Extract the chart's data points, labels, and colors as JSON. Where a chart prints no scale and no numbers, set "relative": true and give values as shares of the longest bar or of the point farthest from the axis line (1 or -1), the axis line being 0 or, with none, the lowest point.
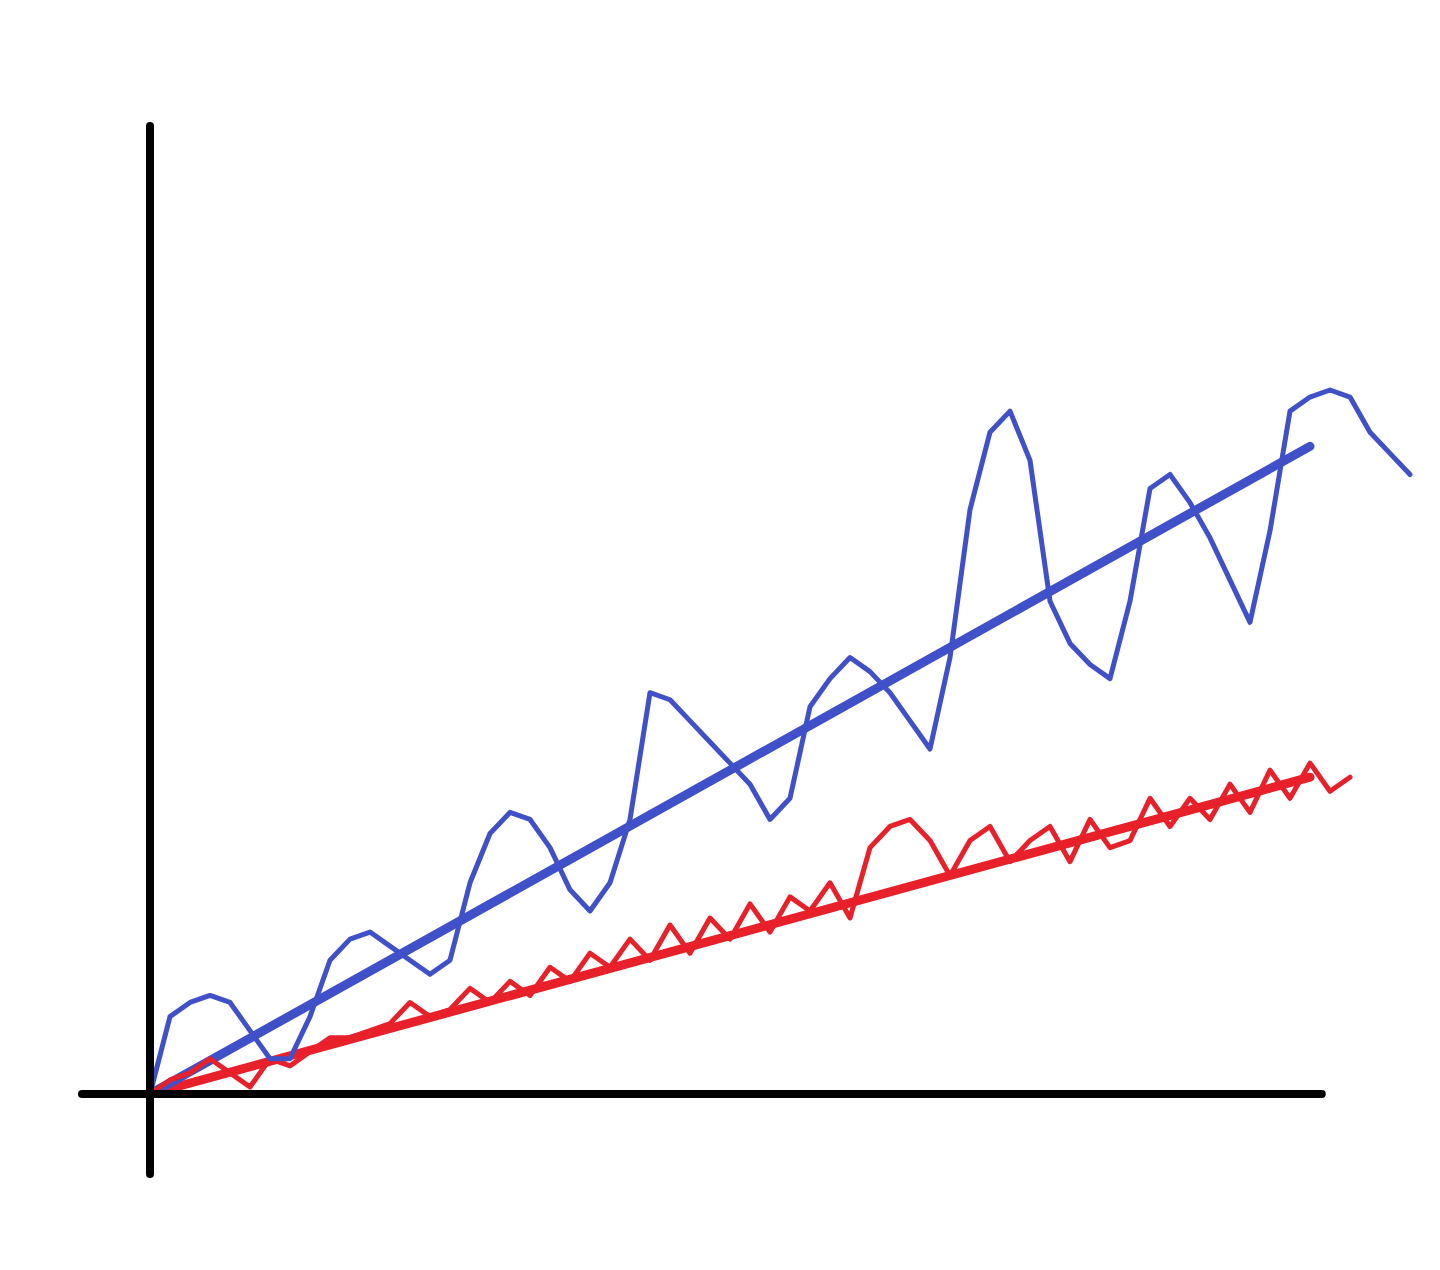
{
  "chart_data": {
    "type": "line",
    "relative": true,
    "legend": false,
    "marker": "none",
    "line_style": "solid",
    "categories": [
      null,
      null,
      null,
      null,
      null,
      null,
      null,
      null,
      null,
      null,
      null,
      null,
      null,
      null,
      null,
      null,
      null,
      null,
      null,
      null,
      null,
      null,
      null,
      null,
      null,
      null,
      null,
      null,
      null,
      null,
      null,
      null,
      null,
      null,
      null,
      null,
      null,
      null,
      null,
      null,
      null,
      null,
      null,
      null,
      null,
      null,
      null,
      null,
      null,
      null,
      null,
      null,
      null,
      null,
      null,
      null,
      null,
      null,
      null,
      null,
      null,
      null,
      null,
      null
    ],
    "series": [
      {
        "color": "#4050c8",
        "values": [
          0,
          0.11,
          0.13,
          0.14,
          0.13,
          0.09,
          0.05,
          0.05,
          0.11,
          0.19,
          0.22,
          0.23,
          0.21,
          0.19,
          0.17,
          0.19,
          0.3,
          0.37,
          0.4,
          0.39,
          0.35,
          0.29,
          0.26,
          0.3,
          0.39,
          0.57,
          0.56,
          0.53,
          0.5,
          0.47,
          0.44,
          0.39,
          0.42,
          0.55,
          0.59,
          0.62,
          0.6,
          0.57,
          0.53,
          0.49,
          0.62,
          0.83,
          0.94,
          0.97,
          0.9,
          0.7,
          0.64,
          0.61,
          0.59,
          0.7,
          0.86,
          0.88,
          0.84,
          0.79,
          0.73,
          0.67,
          0.8,
          0.97,
          0.99,
          1.0,
          0.99,
          0.94,
          0.91,
          0.88
        ]
      },
      {
        "color": "#e8202a",
        "values": [
          0,
          0.02,
          0.03,
          0.05,
          0.03,
          0.01,
          0.05,
          0.04,
          0.06,
          0.08,
          0.08,
          0.09,
          0.1,
          0.13,
          0.11,
          0.12,
          0.15,
          0.13,
          0.16,
          0.14,
          0.18,
          0.16,
          0.2,
          0.18,
          0.22,
          0.19,
          0.24,
          0.2,
          0.25,
          0.22,
          0.27,
          0.23,
          0.28,
          0.26,
          0.3,
          0.25,
          0.35,
          0.38,
          0.39,
          0.36,
          0.31,
          0.36,
          0.38,
          0.33,
          0.36,
          0.38,
          0.33,
          0.39,
          0.35,
          0.36,
          0.42,
          0.38,
          0.42,
          0.39,
          0.44,
          0.4,
          0.46,
          0.42,
          0.47,
          0.43,
          0.45,
          null,
          null,
          null
        ]
      },
      {
        "color": "#4050c8",
        "values": [
          0,
          null,
          null,
          null,
          null,
          null,
          null,
          null,
          null,
          null,
          null,
          null,
          null,
          null,
          null,
          null,
          null,
          null,
          null,
          null,
          null,
          null,
          null,
          null,
          null,
          null,
          null,
          null,
          null,
          null,
          null,
          null,
          null,
          null,
          null,
          null,
          null,
          null,
          null,
          null,
          null,
          null,
          null,
          null,
          null,
          null,
          null,
          null,
          null,
          null,
          null,
          null,
          null,
          null,
          null,
          null,
          null,
          null,
          0.92,
          null,
          null,
          null,
          null,
          null
        ]
      },
      {
        "color": "#e8202a",
        "values": [
          0,
          null,
          null,
          null,
          null,
          null,
          null,
          null,
          null,
          null,
          null,
          null,
          null,
          null,
          null,
          null,
          null,
          null,
          null,
          null,
          null,
          null,
          null,
          null,
          null,
          null,
          null,
          null,
          null,
          null,
          null,
          null,
          null,
          null,
          null,
          null,
          null,
          null,
          null,
          null,
          null,
          null,
          null,
          null,
          null,
          null,
          null,
          null,
          null,
          null,
          null,
          null,
          null,
          null,
          null,
          null,
          null,
          null,
          0.45,
          null,
          null,
          null,
          null,
          null
        ]
      }
    ]
  }
}
